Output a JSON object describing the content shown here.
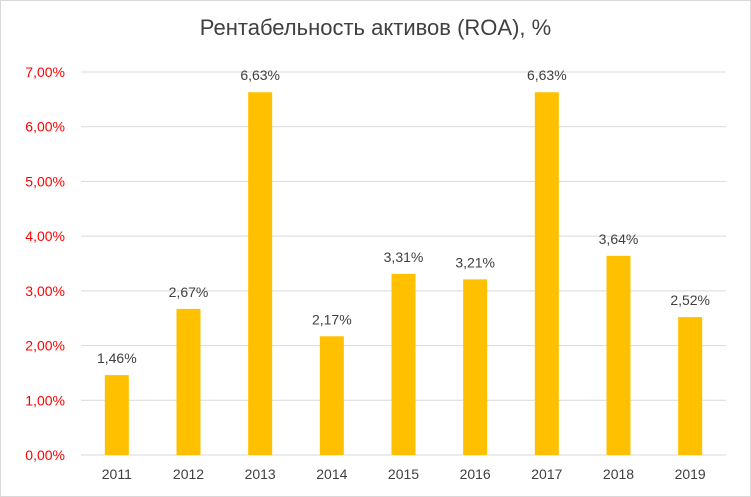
{
  "chart_data": {
    "type": "bar",
    "title": "Рентабельность активов (ROA), %",
    "categories": [
      "2011",
      "2012",
      "2013",
      "2014",
      "2015",
      "2016",
      "2017",
      "2018",
      "2019"
    ],
    "values": [
      1.46,
      2.67,
      6.63,
      2.17,
      3.31,
      3.21,
      6.63,
      3.64,
      2.52
    ],
    "data_labels": [
      "1,46%",
      "2,67%",
      "6,63%",
      "2,17%",
      "3,31%",
      "3,21%",
      "6,63%",
      "3,64%",
      "2,52%"
    ],
    "y_ticks": [
      "0,00%",
      "1,00%",
      "2,00%",
      "3,00%",
      "4,00%",
      "5,00%",
      "6,00%",
      "7,00%"
    ],
    "ylim": [
      0,
      7
    ],
    "grid": true,
    "legend": "none",
    "colors": {
      "bar": "#ffc000",
      "y_tick_text": "#ff0000",
      "text": "#404040",
      "grid": "#d9d9d9"
    }
  }
}
